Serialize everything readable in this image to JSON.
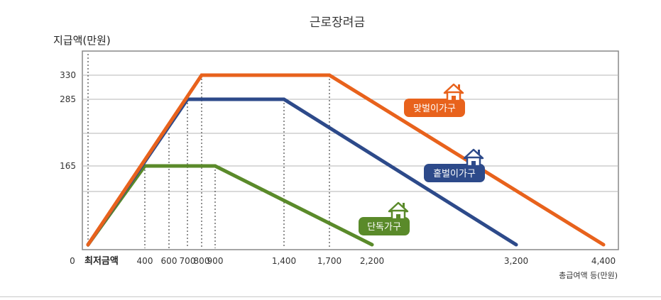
{
  "chart_data": {
    "type": "line",
    "title": "근로장려금",
    "ylabel": "지급액(만원)",
    "xlabel": "총급여액 등(만원)",
    "min_wage_label": "최저금액",
    "x_ticks": [
      {
        "value": 0,
        "label": "0"
      },
      {
        "value": 400,
        "label": "400"
      },
      {
        "value": 600,
        "label": "600"
      },
      {
        "value": 700,
        "label": "700"
      },
      {
        "value": 800,
        "label": "800"
      },
      {
        "value": 900,
        "label": "900"
      },
      {
        "value": 1400,
        "label": "1,400"
      },
      {
        "value": 1700,
        "label": "1,700"
      },
      {
        "value": 2200,
        "label": "2,200"
      },
      {
        "value": 3200,
        "label": "3,200"
      },
      {
        "value": 4400,
        "label": "4,400"
      }
    ],
    "y_ticks": [
      {
        "value": 330,
        "label": "330"
      },
      {
        "value": 285,
        "label": "285"
      },
      {
        "value": 165,
        "label": "165"
      }
    ],
    "xlim": [
      0,
      4400
    ],
    "ylim": [
      0,
      330
    ],
    "series": [
      {
        "name": "맞벌이가구",
        "color": "#e8621c",
        "points": [
          [
            0,
            0
          ],
          [
            800,
            330
          ],
          [
            1700,
            330
          ],
          [
            4400,
            0
          ]
        ]
      },
      {
        "name": "홑벌이가구",
        "color": "#2d4a8a",
        "points": [
          [
            0,
            0
          ],
          [
            700,
            285
          ],
          [
            1400,
            285
          ],
          [
            3200,
            0
          ]
        ]
      },
      {
        "name": "단독가구",
        "color": "#5a8a2a",
        "points": [
          [
            0,
            0
          ],
          [
            400,
            165
          ],
          [
            900,
            165
          ],
          [
            2200,
            0
          ]
        ]
      }
    ],
    "grid": true,
    "icon": "house-icon"
  }
}
